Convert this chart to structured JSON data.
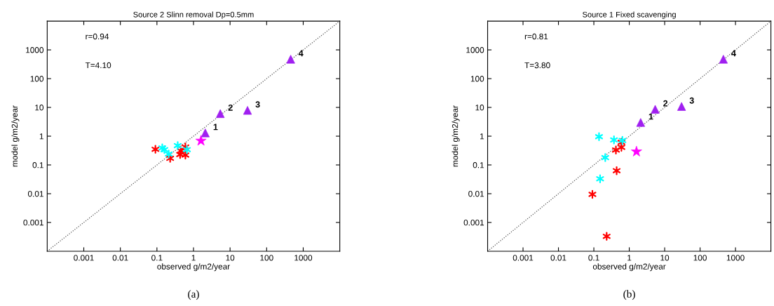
{
  "chart_data": [
    {
      "type": "scatter",
      "title": "Source 2 Slinn removal Dp=0.5mm",
      "xlabel": "observed g/m2/year",
      "ylabel": "model g/m2/year",
      "log": "xy",
      "grid": false,
      "legend": false,
      "xlim": [
        0.0001,
        10000
      ],
      "ylim": [
        0.0001,
        10000
      ],
      "xticks": [
        0.001,
        0.01,
        0.1,
        1,
        10,
        100,
        1000
      ],
      "yticks": [
        0.001,
        0.01,
        0.1,
        1,
        10,
        100,
        1000
      ],
      "series": [
        {
          "type": "line",
          "color": "#555555",
          "line_style": "dotted",
          "marker": "none",
          "x": [
            0.0001,
            10000
          ],
          "values": [
            0.0001,
            10000
          ]
        },
        {
          "color": "#ff0000",
          "marker": "cross",
          "x": [
            0.091,
            0.23,
            0.45,
            0.43,
            0.6,
            0.6
          ],
          "values": [
            0.35,
            0.17,
            0.31,
            0.23,
            0.42,
            0.22
          ]
        },
        {
          "color": "#00ffff",
          "marker": "cross",
          "x": [
            0.14,
            0.16,
            0.21,
            0.37,
            0.66
          ],
          "values": [
            0.39,
            0.34,
            0.24,
            0.47,
            0.34
          ]
        },
        {
          "color": "#ff00ff",
          "marker": "star",
          "x": [
            1.6
          ],
          "values": [
            0.69
          ]
        },
        {
          "color": "#a020f0",
          "marker": "triangle",
          "x": [
            2.1,
            5.4,
            30,
            455
          ],
          "values": [
            1.3,
            6.1,
            7.9,
            475
          ]
        }
      ],
      "annotations": [
        "r=0.94",
        "T=4.10",
        "(a)",
        {
          "text": "1",
          "x": 2.1,
          "y": 1.3
        },
        {
          "text": "2",
          "x": 5.4,
          "y": 6.1
        },
        {
          "text": "3",
          "x": 30,
          "y": 7.9
        },
        {
          "text": "4",
          "x": 455,
          "y": 475
        }
      ]
    },
    {
      "type": "scatter",
      "title": "Source 1 Fixed scavenging",
      "xlabel": "observed g/m2/year",
      "ylabel": "model g/m2/year",
      "log": "xy",
      "grid": false,
      "legend": false,
      "xlim": [
        0.0001,
        10000
      ],
      "ylim": [
        0.0001,
        10000
      ],
      "xticks": [
        0.001,
        0.01,
        0.1,
        1,
        10,
        100,
        1000
      ],
      "yticks": [
        0.001,
        0.01,
        0.1,
        1,
        10,
        100,
        1000
      ],
      "series": [
        {
          "type": "line",
          "color": "#555555",
          "line_style": "dotted",
          "marker": "none",
          "x": [
            0.0001,
            10000
          ],
          "values": [
            0.0001,
            10000
          ]
        },
        {
          "color": "#ff0000",
          "marker": "cross",
          "x": [
            0.091,
            0.23,
            0.44,
            0.42,
            0.6,
            0.6
          ],
          "values": [
            0.0095,
            0.00033,
            0.063,
            0.33,
            0.41,
            0.61
          ]
        },
        {
          "color": "#00ffff",
          "marker": "cross",
          "x": [
            0.14,
            0.21,
            0.15,
            0.37,
            0.64
          ],
          "values": [
            0.96,
            0.18,
            0.033,
            0.74,
            0.71
          ]
        },
        {
          "color": "#ff00ff",
          "marker": "star",
          "x": [
            1.6
          ],
          "values": [
            0.29
          ]
        },
        {
          "color": "#a020f0",
          "marker": "triangle",
          "x": [
            2.1,
            5.4,
            30,
            455
          ],
          "values": [
            3.0,
            8.6,
            10.8,
            475
          ]
        }
      ],
      "annotations": [
        "r=0.81",
        "T=3.80",
        "(b)",
        {
          "text": "1",
          "x": 2.1,
          "y": 3.0
        },
        {
          "text": "2",
          "x": 5.4,
          "y": 8.6
        },
        {
          "text": "3",
          "x": 30,
          "y": 10.8
        },
        {
          "text": "4",
          "x": 455,
          "y": 475
        }
      ]
    }
  ]
}
